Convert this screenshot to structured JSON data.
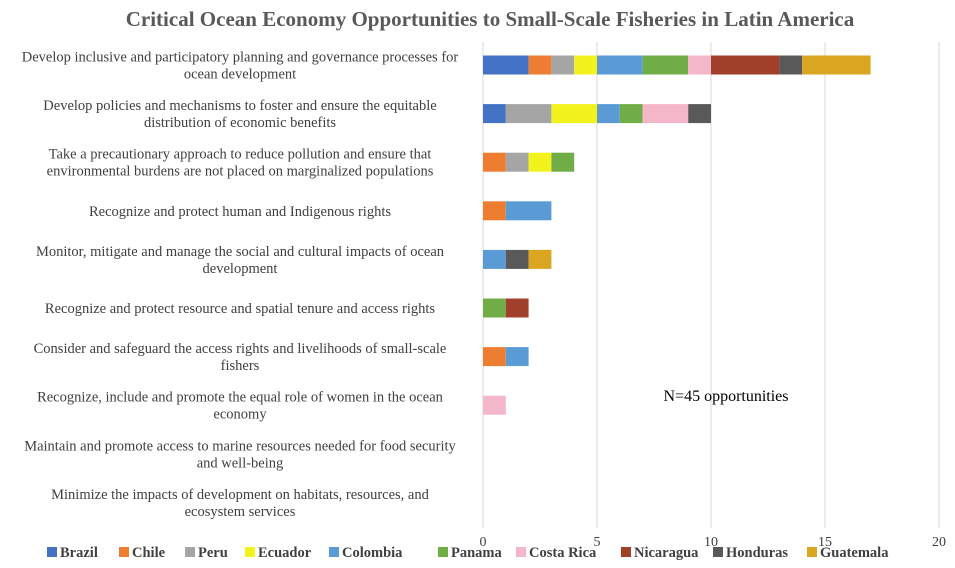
{
  "chart_data": {
    "type": "bar",
    "orientation": "horizontal",
    "stacked": true,
    "title": "Critical Ocean Economy Opportunities to Small-Scale Fisheries in Latin America",
    "annotation": "N=45 opportunities",
    "categories": [
      [
        "Develop inclusive and participatory planning and governance processes for",
        "ocean development"
      ],
      [
        "Develop policies and mechanisms to foster and ensure the equitable",
        "distribution of economic benefits"
      ],
      [
        "Take a precautionary approach to reduce pollution and ensure that",
        "environmental burdens are not placed on marginalized populations"
      ],
      [
        "Recognize and protect human and Indigenous rights"
      ],
      [
        "Monitor, mitigate and manage the social and cultural impacts of ocean",
        "development"
      ],
      [
        "Recognize and protect resource and spatial tenure and access rights"
      ],
      [
        "Consider and safeguard the access rights and livelihoods of small-scale",
        "fishers"
      ],
      [
        "Recognize, include and promote the equal role of women in the ocean",
        "economy"
      ],
      [
        "Maintain and promote access to marine resources needed for food security",
        "and well-being"
      ],
      [
        "Minimize the impacts of development on habitats, resources, and",
        "ecosystem services"
      ]
    ],
    "xlim": [
      0,
      20
    ],
    "xticks": [
      "0",
      "5",
      "10",
      "15",
      "20"
    ],
    "xgrid": true,
    "legend_position": "bottom",
    "series": [
      {
        "name": "Brazil",
        "color": "#4472C4",
        "values": [
          2,
          1,
          0,
          0,
          0,
          0,
          0,
          0,
          0,
          0
        ]
      },
      {
        "name": "Chile",
        "color": "#ED7D31",
        "values": [
          1,
          0,
          1,
          1,
          0,
          0,
          1,
          0,
          0,
          0
        ]
      },
      {
        "name": "Peru",
        "color": "#A5A5A5",
        "values": [
          1,
          2,
          1,
          0,
          0,
          0,
          0,
          0,
          0,
          0
        ]
      },
      {
        "name": "Ecuador",
        "color": "#F2F21C",
        "values": [
          1,
          2,
          1,
          0,
          0,
          0,
          0,
          0,
          0,
          0
        ]
      },
      {
        "name": "Colombia",
        "color": "#5B9BD5",
        "values": [
          2,
          1,
          0,
          2,
          1,
          0,
          1,
          0,
          0,
          0
        ]
      },
      {
        "name": "Panama",
        "color": "#70AD47",
        "values": [
          2,
          1,
          1,
          0,
          0,
          1,
          0,
          0,
          0,
          0
        ]
      },
      {
        "name": "Costa Rica",
        "color": "#F4B6C9",
        "values": [
          1,
          2,
          0,
          0,
          0,
          0,
          0,
          1,
          0,
          0
        ]
      },
      {
        "name": "Nicaragua",
        "color": "#A0402A",
        "values": [
          3,
          0,
          0,
          0,
          0,
          1,
          0,
          0,
          0,
          0
        ]
      },
      {
        "name": "Honduras",
        "color": "#595959",
        "values": [
          1,
          1,
          0,
          0,
          1,
          0,
          0,
          0,
          0,
          0
        ]
      },
      {
        "name": "Guatemala",
        "color": "#DAA520",
        "values": [
          3,
          0,
          0,
          0,
          1,
          0,
          0,
          0,
          0,
          0
        ]
      }
    ]
  }
}
